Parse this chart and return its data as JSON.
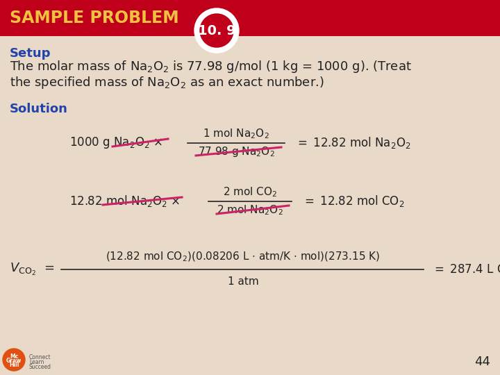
{
  "bg_color": "#e8d9c8",
  "header_color": "#c0001a",
  "header_text": "SAMPLE PROBLEM",
  "header_num": "10. 9",
  "header_text_color": "#f0c040",
  "setup_label": "Setup",
  "setup_color": "#2244aa",
  "solution_label": "Solution",
  "solution_color": "#2244aa",
  "text_color": "#222222",
  "strikethrough_color": "#cc2266",
  "page_num": "44",
  "logo_color": "#e05010"
}
